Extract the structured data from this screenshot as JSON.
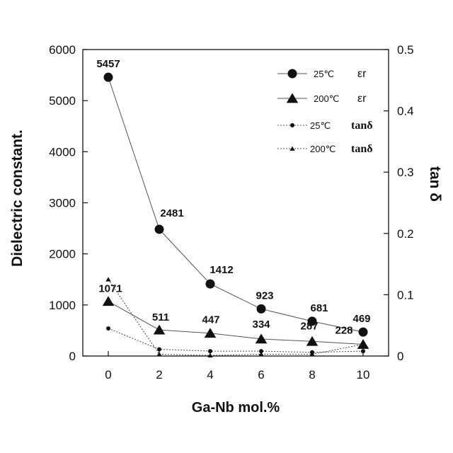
{
  "chart_data": {
    "type": "line",
    "x": [
      0,
      2,
      4,
      6,
      8,
      10
    ],
    "xlabel": "Ga-Nb mol.%",
    "ylabel": "Dielectric constant.",
    "y2label": "tan δ",
    "xlim": [
      -1,
      11
    ],
    "ylim": [
      0,
      6000
    ],
    "y2lim": [
      0,
      0.5
    ],
    "x_ticks": [
      "0",
      "2",
      "4",
      "6",
      "8",
      "10"
    ],
    "y_ticks": [
      "0",
      "1000",
      "2000",
      "3000",
      "4000",
      "5000",
      "6000"
    ],
    "y2_ticks": [
      "0",
      "0.1",
      "0.2",
      "0.3",
      "0.4",
      "0.5"
    ],
    "grid": false,
    "legend_position": "top-right",
    "series": [
      {
        "name": "εr",
        "temperature": "25℃",
        "axis": "left",
        "marker": "circle",
        "line": "solid",
        "values": [
          5457,
          2481,
          1412,
          923,
          681,
          469
        ],
        "labels": [
          "5457",
          "2481",
          "1412",
          "923",
          "681",
          "469"
        ]
      },
      {
        "name": "εr",
        "temperature": "200℃",
        "axis": "left",
        "marker": "triangle",
        "line": "solid",
        "values": [
          1071,
          511,
          447,
          334,
          287,
          228
        ],
        "labels": [
          "1071",
          "511",
          "447",
          "334",
          "287",
          "228"
        ]
      },
      {
        "name": "tanδ",
        "temperature": "25℃",
        "axis": "right",
        "marker": "small-circle",
        "line": "dotted",
        "values": [
          0.045,
          0.011,
          0.008,
          0.008,
          0.006,
          0.008
        ]
      },
      {
        "name": "tanδ",
        "temperature": "200℃",
        "axis": "right",
        "marker": "small-triangle",
        "line": "dotted",
        "values": [
          0.125,
          0.003,
          0.001,
          0.003,
          0.003,
          0.019
        ]
      }
    ]
  }
}
